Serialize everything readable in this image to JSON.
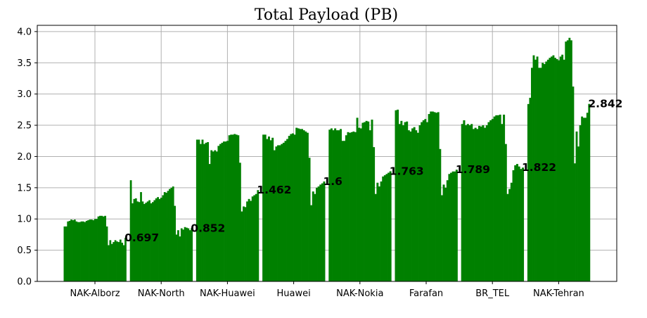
{
  "chart_data": {
    "type": "bar",
    "title": "Total Payload (PB)",
    "xlabel": "",
    "ylabel": "",
    "ylim": [
      0,
      4.1
    ],
    "yticks": [
      0.0,
      0.5,
      1.0,
      1.5,
      2.0,
      2.5,
      3.0,
      3.5,
      4.0
    ],
    "ytick_labels": [
      "0.0",
      "0.5",
      "1.0",
      "1.5",
      "2.0",
      "2.5",
      "3.0",
      "3.5",
      "4.0"
    ],
    "grid": true,
    "bar_color": "#008000",
    "groups": [
      {
        "name": "NAK-Alborz",
        "end_label": "0.697",
        "values": [
          0.88,
          0.88,
          0.96,
          0.97,
          0.99,
          0.98,
          0.99,
          0.96,
          0.95,
          0.95,
          0.96,
          0.96,
          0.95,
          0.97,
          0.98,
          0.99,
          0.99,
          0.98,
          1.0,
          1.0,
          1.04,
          1.05,
          1.05,
          1.04,
          1.05,
          0.88,
          0.58,
          0.66,
          0.6,
          0.63,
          0.66,
          0.64,
          0.63,
          0.67,
          0.62,
          0.58,
          0.697
        ]
      },
      {
        "name": "NAK-North",
        "end_label": "0.852",
        "values": [
          1.62,
          1.25,
          1.32,
          1.33,
          1.28,
          1.27,
          1.43,
          1.28,
          1.24,
          1.26,
          1.28,
          1.3,
          1.25,
          1.27,
          1.3,
          1.33,
          1.35,
          1.32,
          1.34,
          1.38,
          1.43,
          1.42,
          1.45,
          1.48,
          1.5,
          1.52,
          1.21,
          0.75,
          0.82,
          0.72,
          0.85,
          0.83,
          0.87,
          0.86,
          0.85,
          0.82,
          0.852
        ]
      },
      {
        "name": "NAK-Huawei",
        "end_label": "1.462",
        "values": [
          2.27,
          2.27,
          2.2,
          2.27,
          2.2,
          2.22,
          2.23,
          1.88,
          2.1,
          2.08,
          2.1,
          2.08,
          2.17,
          2.2,
          2.22,
          2.24,
          2.24,
          2.25,
          2.34,
          2.35,
          2.35,
          2.36,
          2.35,
          2.34,
          1.9,
          1.12,
          1.2,
          1.19,
          1.28,
          1.32,
          1.29,
          1.36,
          1.38,
          1.4,
          1.462
        ]
      },
      {
        "name": "Huawei",
        "end_label": "1.6",
        "values": [
          2.35,
          2.35,
          2.28,
          2.32,
          2.26,
          2.3,
          2.1,
          2.16,
          2.18,
          2.18,
          2.2,
          2.22,
          2.25,
          2.28,
          2.33,
          2.36,
          2.37,
          2.35,
          2.46,
          2.45,
          2.44,
          2.44,
          2.42,
          2.4,
          2.38,
          1.98,
          1.22,
          1.44,
          1.4,
          1.5,
          1.52,
          1.55,
          1.57,
          1.6
        ]
      },
      {
        "name": "NAK-Nokia",
        "end_label": "1.763",
        "values": [
          2.43,
          2.45,
          2.42,
          2.45,
          2.42,
          2.42,
          2.44,
          2.25,
          2.25,
          2.34,
          2.39,
          2.38,
          2.39,
          2.4,
          2.39,
          2.62,
          2.46,
          2.45,
          2.54,
          2.55,
          2.57,
          2.56,
          2.42,
          2.59,
          2.15,
          1.4,
          1.58,
          1.52,
          1.6,
          1.68,
          1.7,
          1.72,
          1.74,
          1.763
        ]
      },
      {
        "name": "Farafan",
        "end_label": "1.789",
        "values": [
          2.74,
          2.75,
          2.52,
          2.57,
          2.5,
          2.55,
          2.56,
          2.42,
          2.4,
          2.45,
          2.47,
          2.42,
          2.38,
          2.5,
          2.55,
          2.58,
          2.6,
          2.55,
          2.68,
          2.72,
          2.72,
          2.71,
          2.7,
          2.71,
          2.12,
          1.38,
          1.55,
          1.5,
          1.62,
          1.72,
          1.74,
          1.76,
          1.76,
          1.789
        ]
      },
      {
        "name": "BR_TEL",
        "end_label": "1.822",
        "values": [
          2.52,
          2.58,
          2.5,
          2.52,
          2.5,
          2.52,
          2.44,
          2.46,
          2.44,
          2.49,
          2.48,
          2.5,
          2.46,
          2.5,
          2.55,
          2.58,
          2.6,
          2.64,
          2.66,
          2.66,
          2.67,
          2.52,
          2.67,
          2.2,
          1.4,
          1.48,
          1.58,
          1.78,
          1.86,
          1.88,
          1.84,
          1.8,
          1.822
        ]
      },
      {
        "name": "NAK-Tehran",
        "end_label": "2.842",
        "values": [
          2.84,
          2.94,
          3.42,
          3.62,
          3.55,
          3.6,
          3.42,
          3.42,
          3.5,
          3.48,
          3.52,
          3.55,
          3.58,
          3.6,
          3.62,
          3.58,
          3.56,
          3.54,
          3.6,
          3.63,
          3.55,
          3.84,
          3.86,
          3.9,
          3.86,
          3.12,
          1.89,
          2.4,
          2.16,
          2.5,
          2.64,
          2.62,
          2.62,
          2.7,
          2.842
        ]
      }
    ]
  }
}
